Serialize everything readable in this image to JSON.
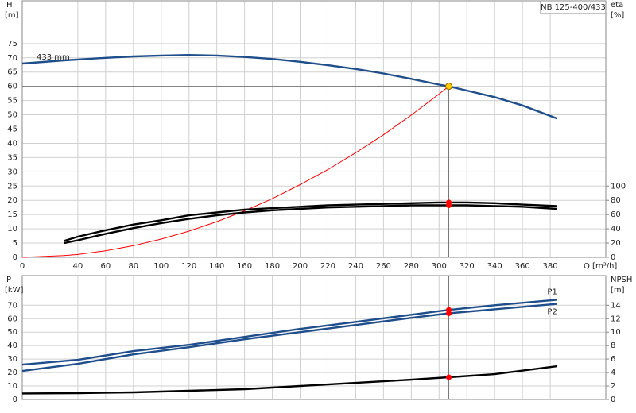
{
  "chart_data": [
    {
      "type": "line",
      "title": "NB 125-400/433",
      "y_label": "H",
      "y_unit": "[m]",
      "y2_label": "eta",
      "y2_unit": "[%]",
      "x_label": "Q [m³/h]",
      "x": [
        0,
        30,
        40,
        60,
        80,
        100,
        120,
        140,
        160,
        180,
        200,
        220,
        240,
        260,
        280,
        300,
        307,
        320,
        340,
        360,
        385
      ],
      "xlim": [
        0,
        420
      ],
      "xticks": [
        0,
        40,
        60,
        80,
        100,
        120,
        140,
        160,
        180,
        200,
        220,
        240,
        260,
        280,
        300,
        320,
        340,
        360,
        380
      ],
      "ylim": [
        0,
        90
      ],
      "yticks": [
        0,
        5,
        10,
        15,
        20,
        25,
        30,
        35,
        40,
        45,
        50,
        55,
        60,
        65,
        70,
        75
      ],
      "y2lim": [
        0,
        360
      ],
      "y2ticks": [
        0,
        20,
        40,
        60,
        80,
        100
      ],
      "grid": true,
      "operating_point": {
        "q": 307,
        "h": 60,
        "color": "#ffcc00"
      },
      "marker_color": "#ff0000",
      "series": [
        {
          "name": "433 mm",
          "color": "#1f4e8c",
          "values": [
            68,
            69.1,
            69.4,
            70,
            70.5,
            70.8,
            71,
            70.8,
            70.3,
            69.6,
            68.6,
            67.4,
            66.1,
            64.5,
            62.6,
            60.6,
            60,
            58.5,
            56.2,
            53.3,
            48.7
          ]
        },
        {
          "color": "#ff0000",
          "values": [
            0,
            0.6,
            1,
            2.3,
            4.1,
            6.4,
            9.2,
            12.5,
            16.3,
            20.6,
            25.5,
            30.8,
            36.7,
            43,
            49.9,
            57.3,
            60,
            null,
            null,
            null,
            null
          ]
        },
        {
          "color": "#000000",
          "axis": "y2",
          "values": [
            null,
            23,
            29,
            38,
            46,
            52,
            59,
            63,
            67,
            69,
            71,
            73,
            74,
            75,
            76,
            77,
            77,
            77,
            76,
            74,
            72
          ]
        },
        {
          "color": "#000000",
          "axis": "y2",
          "values": [
            null,
            20,
            24,
            33,
            41,
            48,
            54,
            59,
            63,
            66,
            68,
            70,
            71,
            72,
            73,
            73,
            73,
            73,
            72,
            71,
            68
          ]
        }
      ]
    },
    {
      "type": "line",
      "y_label": "P",
      "y_unit": "[kW]",
      "y2_label": "NPSH",
      "y2_unit": "[m]",
      "x": [
        0,
        40,
        80,
        120,
        160,
        200,
        240,
        280,
        307,
        340,
        385
      ],
      "xlim": [
        0,
        420
      ],
      "ylim": [
        0,
        92
      ],
      "yticks": [
        0,
        10,
        20,
        30,
        40,
        50,
        60,
        70
      ],
      "y2lim": [
        0,
        18.4
      ],
      "y2ticks": [
        0,
        2,
        4,
        6,
        8,
        10,
        12,
        14
      ],
      "grid": true,
      "marker_color": "#ff0000",
      "series": [
        {
          "name": "P1",
          "color": "#1f4e8c",
          "values": [
            25.9,
            29.4,
            35.9,
            40.6,
            46.5,
            52.4,
            57.6,
            62.9,
            66.5,
            70,
            74.1
          ]
        },
        {
          "name": "P2",
          "color": "#1f4e8c",
          "values": [
            21.2,
            26.5,
            33.5,
            38.8,
            44.7,
            50,
            55.3,
            60.6,
            64,
            67,
            71
          ]
        },
        {
          "color": "#000000",
          "axis": "y2",
          "values": [
            0.9,
            0.94,
            1.06,
            1.3,
            1.53,
            2,
            2.47,
            2.94,
            3.3,
            3.76,
            4.94
          ]
        }
      ]
    }
  ]
}
